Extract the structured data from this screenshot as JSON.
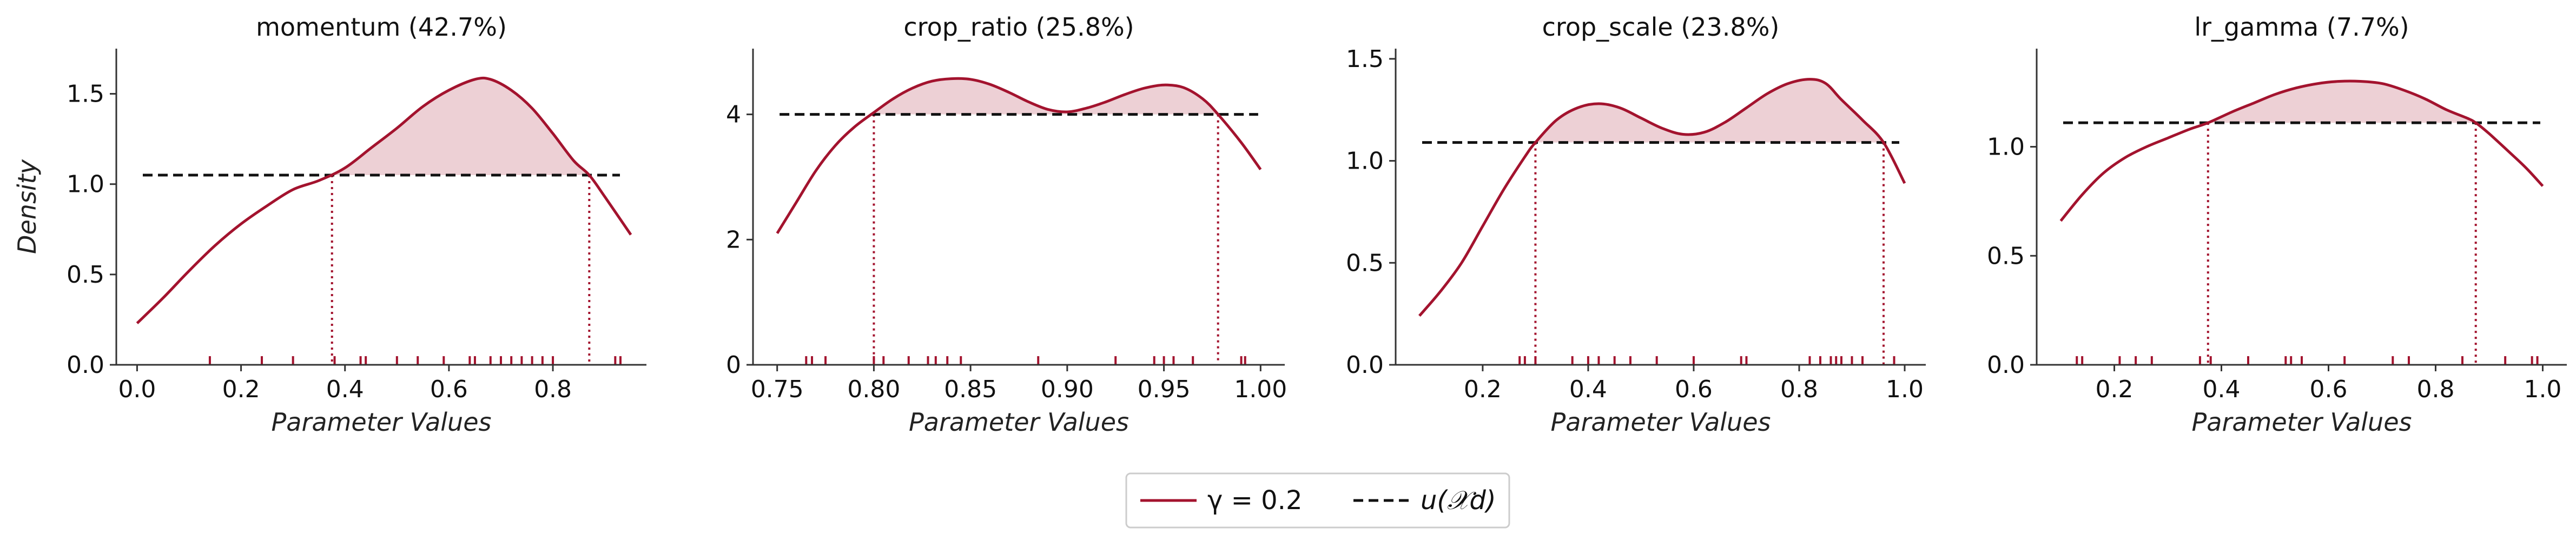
{
  "colors": {
    "density": "#a3132e",
    "fill": "#a3132e",
    "uniform": "#111111",
    "rug": "#a3132e",
    "axis": "#333333"
  },
  "legend": {
    "placement": "bottom-center",
    "density_label": "γ = 0.2",
    "uniform_label": "u(𝒳d)"
  },
  "chart_data": [
    {
      "type": "line",
      "title": "momentum (42.7%)",
      "xlabel": "Parameter Values",
      "ylabel": "Density",
      "xlim": [
        -0.04,
        0.98
      ],
      "ylim": [
        0,
        1.75
      ],
      "xticks": [
        "0.0",
        "0.2",
        "0.4",
        "0.6",
        "0.8"
      ],
      "xtick_values": [
        0,
        0.2,
        0.4,
        0.6,
        0.8
      ],
      "yticks": [
        "0.0",
        "0.5",
        "1.0",
        "1.5"
      ],
      "ytick_values": [
        0,
        0.5,
        1.0,
        1.5
      ],
      "uniform_level": 1.05,
      "crossings": [
        0.375,
        0.87
      ],
      "series": [
        {
          "x": [
            0.0,
            0.05,
            0.1,
            0.15,
            0.2,
            0.25,
            0.3,
            0.35,
            0.4,
            0.45,
            0.5,
            0.55,
            0.6,
            0.65,
            0.68,
            0.72,
            0.76,
            0.8,
            0.84,
            0.87,
            0.9,
            0.95
          ],
          "y": [
            0.23,
            0.37,
            0.52,
            0.66,
            0.78,
            0.88,
            0.97,
            1.02,
            1.09,
            1.2,
            1.31,
            1.43,
            1.52,
            1.58,
            1.58,
            1.52,
            1.42,
            1.28,
            1.13,
            1.05,
            0.93,
            0.72
          ]
        }
      ],
      "rug": [
        0.14,
        0.24,
        0.3,
        0.38,
        0.43,
        0.44,
        0.5,
        0.54,
        0.59,
        0.64,
        0.65,
        0.68,
        0.7,
        0.72,
        0.74,
        0.76,
        0.78,
        0.8,
        0.92,
        0.93
      ]
    },
    {
      "type": "line",
      "title": "crop_ratio (25.8%)",
      "xlabel": "Parameter Values",
      "ylabel": "",
      "xlim": [
        0.7375,
        1.0125
      ],
      "ylim": [
        0,
        5.05
      ],
      "xticks": [
        "0.75",
        "0.80",
        "0.85",
        "0.90",
        "0.95",
        "1.00"
      ],
      "xtick_values": [
        0.75,
        0.8,
        0.85,
        0.9,
        0.95,
        1.0
      ],
      "yticks": [
        "0",
        "2",
        "4"
      ],
      "ytick_values": [
        0,
        2,
        4
      ],
      "uniform_level": 4.0,
      "crossings": [
        0.8,
        0.978
      ],
      "series": [
        {
          "x": [
            0.75,
            0.76,
            0.77,
            0.78,
            0.79,
            0.8,
            0.81,
            0.82,
            0.83,
            0.84,
            0.85,
            0.86,
            0.87,
            0.88,
            0.89,
            0.9,
            0.91,
            0.92,
            0.93,
            0.94,
            0.95,
            0.96,
            0.97,
            0.978,
            0.99,
            1.0
          ],
          "y": [
            2.1,
            2.6,
            3.1,
            3.5,
            3.8,
            4.03,
            4.25,
            4.42,
            4.53,
            4.57,
            4.56,
            4.48,
            4.35,
            4.2,
            4.08,
            4.04,
            4.1,
            4.2,
            4.32,
            4.42,
            4.47,
            4.43,
            4.25,
            4.0,
            3.55,
            3.12
          ]
        }
      ],
      "rug": [
        0.765,
        0.768,
        0.775,
        0.8,
        0.805,
        0.818,
        0.828,
        0.832,
        0.838,
        0.845,
        0.885,
        0.925,
        0.945,
        0.95,
        0.955,
        0.965,
        0.99,
        0.992
      ]
    },
    {
      "type": "line",
      "title": "crop_scale (23.8%)",
      "xlabel": "Parameter Values",
      "ylabel": "",
      "xlim": [
        0.035,
        1.04
      ],
      "ylim": [
        0,
        1.55
      ],
      "xticks": [
        "0.2",
        "0.4",
        "0.6",
        "0.8",
        "1.0"
      ],
      "xtick_values": [
        0.2,
        0.4,
        0.6,
        0.8,
        1.0
      ],
      "yticks": [
        "0.0",
        "0.5",
        "1.0",
        "1.5"
      ],
      "ytick_values": [
        0,
        0.5,
        1.0,
        1.5
      ],
      "uniform_level": 1.09,
      "crossings": [
        0.3,
        0.96
      ],
      "series": [
        {
          "x": [
            0.08,
            0.12,
            0.16,
            0.2,
            0.24,
            0.28,
            0.3,
            0.34,
            0.38,
            0.42,
            0.46,
            0.5,
            0.54,
            0.58,
            0.62,
            0.66,
            0.7,
            0.74,
            0.78,
            0.82,
            0.85,
            0.88,
            0.92,
            0.96,
            1.0
          ],
          "y": [
            0.24,
            0.36,
            0.5,
            0.68,
            0.86,
            1.02,
            1.09,
            1.2,
            1.26,
            1.28,
            1.26,
            1.21,
            1.16,
            1.13,
            1.14,
            1.19,
            1.26,
            1.33,
            1.38,
            1.4,
            1.38,
            1.3,
            1.2,
            1.09,
            0.89
          ]
        }
      ],
      "rug": [
        0.27,
        0.28,
        0.3,
        0.37,
        0.4,
        0.42,
        0.45,
        0.48,
        0.53,
        0.6,
        0.69,
        0.7,
        0.82,
        0.84,
        0.86,
        0.87,
        0.88,
        0.9,
        0.92,
        0.98
      ]
    },
    {
      "type": "line",
      "title": "lr_gamma (7.7%)",
      "xlabel": "Parameter Values",
      "ylabel": "",
      "xlim": [
        0.055,
        1.045
      ],
      "ylim": [
        0,
        1.45
      ],
      "xticks": [
        "0.2",
        "0.4",
        "0.6",
        "0.8",
        "1.0"
      ],
      "xtick_values": [
        0.2,
        0.4,
        0.6,
        0.8,
        1.0
      ],
      "yticks": [
        "0.0",
        "0.5",
        "1.0"
      ],
      "ytick_values": [
        0,
        0.5,
        1.0
      ],
      "uniform_level": 1.11,
      "crossings": [
        0.375,
        0.875
      ],
      "series": [
        {
          "x": [
            0.1,
            0.14,
            0.18,
            0.22,
            0.26,
            0.3,
            0.34,
            0.375,
            0.42,
            0.46,
            0.5,
            0.54,
            0.58,
            0.62,
            0.66,
            0.7,
            0.74,
            0.78,
            0.82,
            0.86,
            0.875,
            0.9,
            0.94,
            0.97,
            1.0
          ],
          "y": [
            0.66,
            0.78,
            0.88,
            0.95,
            1.0,
            1.04,
            1.08,
            1.11,
            1.16,
            1.2,
            1.24,
            1.27,
            1.29,
            1.3,
            1.3,
            1.29,
            1.26,
            1.22,
            1.17,
            1.13,
            1.11,
            1.06,
            0.97,
            0.9,
            0.82
          ]
        }
      ],
      "rug": [
        0.13,
        0.14,
        0.21,
        0.24,
        0.27,
        0.36,
        0.38,
        0.45,
        0.52,
        0.53,
        0.55,
        0.63,
        0.72,
        0.75,
        0.85,
        0.93,
        0.98,
        0.99
      ]
    }
  ]
}
